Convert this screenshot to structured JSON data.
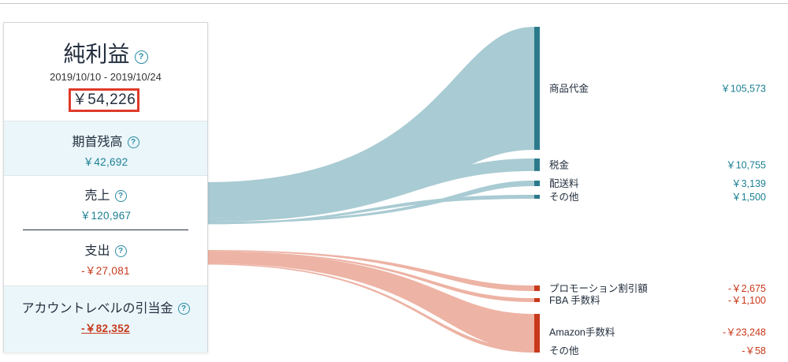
{
  "summary": {
    "net_profit_label": "純利益",
    "date_range": "2019/10/10 - 2019/10/24",
    "net_profit_value": "￥54,226",
    "opening_balance_label": "期首残高",
    "opening_balance_value": "￥42,692",
    "sales_label": "売上",
    "sales_value": "￥120,967",
    "expenses_label": "支出",
    "expenses_value": "-￥27,081",
    "reserve_label": "アカウントレベルの引当金",
    "reserve_value": "-￥82,352",
    "help_icon": "?"
  },
  "colors": {
    "income_flow": "#a9cbd3",
    "income_bar": "#2b7a8c",
    "income_value": "#1b7f93",
    "expense_flow": "#edb3a4",
    "expense_bar": "#c8381a",
    "expense_value": "#c8381a",
    "highlight_box": "#e03a2a"
  },
  "chart_data": {
    "type": "sankey",
    "sources": [
      {
        "name": "売上",
        "value": 120967
      },
      {
        "name": "支出",
        "value": 27081
      }
    ],
    "targets": [
      {
        "source": "売上",
        "label": "商品代金",
        "value": 105573,
        "display": "￥105,573"
      },
      {
        "source": "売上",
        "label": "税金",
        "value": 10755,
        "display": "￥10,755"
      },
      {
        "source": "売上",
        "label": "配送料",
        "value": 3139,
        "display": "￥3,139"
      },
      {
        "source": "売上",
        "label": "その他",
        "value": 1500,
        "display": "￥1,500"
      },
      {
        "source": "支出",
        "label": "プロモーション割引額",
        "value": 2675,
        "display": "-￥2,675"
      },
      {
        "source": "支出",
        "label": "FBA 手数料",
        "value": 1100,
        "display": "-￥1,100"
      },
      {
        "source": "支出",
        "label": "Amazon手数料",
        "value": 23248,
        "display": "-￥23,248"
      },
      {
        "source": "支出",
        "label": "その他",
        "value": 58,
        "display": "-￥58"
      }
    ]
  }
}
